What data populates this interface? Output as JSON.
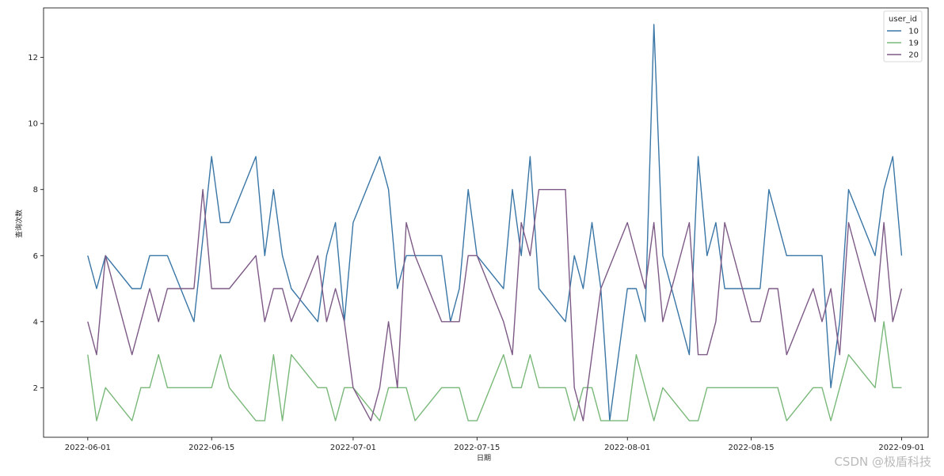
{
  "chart_data": {
    "type": "line",
    "title": "",
    "xlabel": "日期",
    "ylabel": "查询次数",
    "ylim": [
      0.5,
      13.5
    ],
    "xlim": [
      "2022-05-27",
      "2022-09-04"
    ],
    "x_ticks": [
      "2022-06-01",
      "2022-06-15",
      "2022-07-01",
      "2022-07-15",
      "2022-08-01",
      "2022-08-15",
      "2022-09-01"
    ],
    "y_ticks": [
      2,
      4,
      6,
      8,
      10,
      12
    ],
    "grid": false,
    "legend": {
      "title": "user_id",
      "placement": "top-right"
    },
    "series": [
      {
        "name": "10",
        "color": "#3a76a6",
        "points": [
          [
            "2022-06-01",
            6
          ],
          [
            "2022-06-02",
            5
          ],
          [
            "2022-06-03",
            6
          ],
          [
            "2022-06-06",
            5
          ],
          [
            "2022-06-07",
            5
          ],
          [
            "2022-06-08",
            6
          ],
          [
            "2022-06-10",
            6
          ],
          [
            "2022-06-13",
            4
          ],
          [
            "2022-06-15",
            9
          ],
          [
            "2022-06-16",
            7
          ],
          [
            "2022-06-17",
            7
          ],
          [
            "2022-06-20",
            9
          ],
          [
            "2022-06-21",
            6
          ],
          [
            "2022-06-22",
            8
          ],
          [
            "2022-06-23",
            6
          ],
          [
            "2022-06-24",
            5
          ],
          [
            "2022-06-27",
            4
          ],
          [
            "2022-06-28",
            6
          ],
          [
            "2022-06-29",
            7
          ],
          [
            "2022-06-30",
            4
          ],
          [
            "2022-07-01",
            7
          ],
          [
            "2022-07-04",
            9
          ],
          [
            "2022-07-05",
            8
          ],
          [
            "2022-07-06",
            5
          ],
          [
            "2022-07-07",
            6
          ],
          [
            "2022-07-11",
            6
          ],
          [
            "2022-07-12",
            4
          ],
          [
            "2022-07-13",
            5
          ],
          [
            "2022-07-14",
            8
          ],
          [
            "2022-07-15",
            6
          ],
          [
            "2022-07-18",
            5
          ],
          [
            "2022-07-19",
            8
          ],
          [
            "2022-07-20",
            6
          ],
          [
            "2022-07-21",
            9
          ],
          [
            "2022-07-22",
            5
          ],
          [
            "2022-07-25",
            4
          ],
          [
            "2022-07-26",
            6
          ],
          [
            "2022-07-27",
            5
          ],
          [
            "2022-07-28",
            7
          ],
          [
            "2022-07-29",
            5
          ],
          [
            "2022-07-30",
            1
          ],
          [
            "2022-08-01",
            5
          ],
          [
            "2022-08-02",
            5
          ],
          [
            "2022-08-03",
            4
          ],
          [
            "2022-08-04",
            13
          ],
          [
            "2022-08-05",
            6
          ],
          [
            "2022-08-08",
            3
          ],
          [
            "2022-08-09",
            9
          ],
          [
            "2022-08-10",
            6
          ],
          [
            "2022-08-11",
            7
          ],
          [
            "2022-08-12",
            5
          ],
          [
            "2022-08-15",
            5
          ],
          [
            "2022-08-16",
            5
          ],
          [
            "2022-08-17",
            8
          ],
          [
            "2022-08-19",
            6
          ],
          [
            "2022-08-23",
            6
          ],
          [
            "2022-08-24",
            2
          ],
          [
            "2022-08-25",
            4
          ],
          [
            "2022-08-26",
            8
          ],
          [
            "2022-08-29",
            6
          ],
          [
            "2022-08-30",
            8
          ],
          [
            "2022-08-31",
            9
          ],
          [
            "2022-09-01",
            6
          ]
        ]
      },
      {
        "name": "19",
        "color": "#7ab87a",
        "points": [
          [
            "2022-06-01",
            3
          ],
          [
            "2022-06-02",
            1
          ],
          [
            "2022-06-03",
            2
          ],
          [
            "2022-06-06",
            1
          ],
          [
            "2022-06-07",
            2
          ],
          [
            "2022-06-08",
            2
          ],
          [
            "2022-06-09",
            3
          ],
          [
            "2022-06-10",
            2
          ],
          [
            "2022-06-13",
            2
          ],
          [
            "2022-06-15",
            2
          ],
          [
            "2022-06-16",
            3
          ],
          [
            "2022-06-17",
            2
          ],
          [
            "2022-06-20",
            1
          ],
          [
            "2022-06-21",
            1
          ],
          [
            "2022-06-22",
            3
          ],
          [
            "2022-06-23",
            1
          ],
          [
            "2022-06-24",
            3
          ],
          [
            "2022-06-27",
            2
          ],
          [
            "2022-06-28",
            2
          ],
          [
            "2022-06-29",
            1
          ],
          [
            "2022-06-30",
            2
          ],
          [
            "2022-07-01",
            2
          ],
          [
            "2022-07-04",
            1
          ],
          [
            "2022-07-05",
            2
          ],
          [
            "2022-07-06",
            2
          ],
          [
            "2022-07-07",
            2
          ],
          [
            "2022-07-08",
            1
          ],
          [
            "2022-07-11",
            2
          ],
          [
            "2022-07-13",
            2
          ],
          [
            "2022-07-14",
            1
          ],
          [
            "2022-07-15",
            1
          ],
          [
            "2022-07-18",
            3
          ],
          [
            "2022-07-19",
            2
          ],
          [
            "2022-07-20",
            2
          ],
          [
            "2022-07-21",
            3
          ],
          [
            "2022-07-22",
            2
          ],
          [
            "2022-07-25",
            2
          ],
          [
            "2022-07-26",
            1
          ],
          [
            "2022-07-27",
            2
          ],
          [
            "2022-07-28",
            2
          ],
          [
            "2022-07-29",
            1
          ],
          [
            "2022-08-01",
            1
          ],
          [
            "2022-08-02",
            3
          ],
          [
            "2022-08-04",
            1
          ],
          [
            "2022-08-05",
            2
          ],
          [
            "2022-08-08",
            1
          ],
          [
            "2022-08-09",
            1
          ],
          [
            "2022-08-10",
            2
          ],
          [
            "2022-08-17",
            2
          ],
          [
            "2022-08-18",
            2
          ],
          [
            "2022-08-19",
            1
          ],
          [
            "2022-08-22",
            2
          ],
          [
            "2022-08-23",
            2
          ],
          [
            "2022-08-24",
            1
          ],
          [
            "2022-08-26",
            3
          ],
          [
            "2022-08-29",
            2
          ],
          [
            "2022-08-30",
            4
          ],
          [
            "2022-08-31",
            2
          ],
          [
            "2022-09-01",
            2
          ]
        ]
      },
      {
        "name": "20",
        "color": "#7d5a86",
        "points": [
          [
            "2022-06-01",
            4
          ],
          [
            "2022-06-02",
            3
          ],
          [
            "2022-06-03",
            6
          ],
          [
            "2022-06-06",
            3
          ],
          [
            "2022-06-08",
            5
          ],
          [
            "2022-06-09",
            4
          ],
          [
            "2022-06-10",
            5
          ],
          [
            "2022-06-13",
            5
          ],
          [
            "2022-06-14",
            8
          ],
          [
            "2022-06-15",
            5
          ],
          [
            "2022-06-17",
            5
          ],
          [
            "2022-06-20",
            6
          ],
          [
            "2022-06-21",
            4
          ],
          [
            "2022-06-22",
            5
          ],
          [
            "2022-06-23",
            5
          ],
          [
            "2022-06-24",
            4
          ],
          [
            "2022-06-27",
            6
          ],
          [
            "2022-06-28",
            4
          ],
          [
            "2022-06-29",
            5
          ],
          [
            "2022-06-30",
            4
          ],
          [
            "2022-07-01",
            2
          ],
          [
            "2022-07-03",
            1
          ],
          [
            "2022-07-04",
            2
          ],
          [
            "2022-07-05",
            4
          ],
          [
            "2022-07-06",
            2
          ],
          [
            "2022-07-07",
            7
          ],
          [
            "2022-07-08",
            6
          ],
          [
            "2022-07-11",
            4
          ],
          [
            "2022-07-13",
            4
          ],
          [
            "2022-07-14",
            6
          ],
          [
            "2022-07-15",
            6
          ],
          [
            "2022-07-18",
            4
          ],
          [
            "2022-07-19",
            3
          ],
          [
            "2022-07-20",
            7
          ],
          [
            "2022-07-21",
            6
          ],
          [
            "2022-07-22",
            8
          ],
          [
            "2022-07-25",
            8
          ],
          [
            "2022-07-26",
            2
          ],
          [
            "2022-07-27",
            1
          ],
          [
            "2022-07-29",
            5
          ],
          [
            "2022-08-01",
            7
          ],
          [
            "2022-08-03",
            5
          ],
          [
            "2022-08-04",
            7
          ],
          [
            "2022-08-05",
            4
          ],
          [
            "2022-08-08",
            7
          ],
          [
            "2022-08-09",
            3
          ],
          [
            "2022-08-10",
            3
          ],
          [
            "2022-08-11",
            4
          ],
          [
            "2022-08-12",
            7
          ],
          [
            "2022-08-15",
            4
          ],
          [
            "2022-08-16",
            4
          ],
          [
            "2022-08-17",
            5
          ],
          [
            "2022-08-18",
            5
          ],
          [
            "2022-08-19",
            3
          ],
          [
            "2022-08-22",
            5
          ],
          [
            "2022-08-23",
            4
          ],
          [
            "2022-08-24",
            5
          ],
          [
            "2022-08-25",
            3
          ],
          [
            "2022-08-26",
            7
          ],
          [
            "2022-08-29",
            4
          ],
          [
            "2022-08-30",
            7
          ],
          [
            "2022-08-31",
            4
          ],
          [
            "2022-09-01",
            5
          ]
        ]
      }
    ]
  },
  "watermark": "CSDN @极盾科技"
}
